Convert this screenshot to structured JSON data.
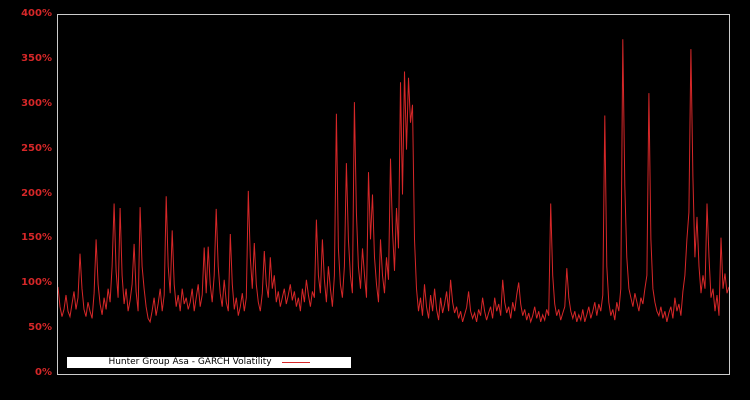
{
  "colors": {
    "background": "#000000",
    "accent_red": "#d62728",
    "plot_border": "#cccccc",
    "legend_bg": "#ffffff",
    "legend_border": "#000000",
    "legend_text": "#000000"
  },
  "chart_data": {
    "type": "line",
    "title": "",
    "legend_label": "Hunter Group Asa - GARCH Volatility",
    "legend_position": "lower left inside plot",
    "grid": false,
    "background": "black",
    "line_color": "#d62728",
    "y_unit": "%",
    "ylim": [
      0,
      400
    ],
    "y_ticks": [
      {
        "label": "400%",
        "value": 400
      },
      {
        "label": "350%",
        "value": 350
      },
      {
        "label": "300%",
        "value": 300
      },
      {
        "label": "250%",
        "value": 250
      },
      {
        "label": "200%",
        "value": 200
      },
      {
        "label": "150%",
        "value": 150
      },
      {
        "label": "100%",
        "value": 100
      },
      {
        "label": "50%",
        "value": 50
      },
      {
        "label": "0%",
        "value": 0
      }
    ],
    "x_tick_labels": [],
    "values": [
      97,
      75,
      64,
      72,
      88,
      70,
      64,
      78,
      92,
      72,
      85,
      134,
      95,
      72,
      64,
      80,
      70,
      62,
      90,
      150,
      100,
      78,
      66,
      85,
      72,
      95,
      80,
      120,
      190,
      115,
      85,
      185,
      110,
      78,
      95,
      70,
      82,
      100,
      145,
      92,
      70,
      186,
      120,
      95,
      75,
      62,
      58,
      70,
      85,
      65,
      78,
      95,
      70,
      88,
      198,
      120,
      90,
      160,
      100,
      75,
      88,
      70,
      95,
      78,
      85,
      72,
      80,
      95,
      70,
      85,
      100,
      75,
      88,
      141,
      90,
      142,
      100,
      80,
      110,
      184,
      120,
      90,
      75,
      105,
      80,
      70,
      156,
      100,
      72,
      85,
      65,
      75,
      90,
      70,
      85,
      204,
      130,
      95,
      146,
      100,
      80,
      70,
      90,
      137,
      100,
      85,
      130,
      95,
      110,
      80,
      92,
      75,
      85,
      95,
      78,
      88,
      100,
      82,
      92,
      75,
      85,
      70,
      95,
      80,
      105,
      88,
      75,
      92,
      85,
      172,
      110,
      90,
      150,
      105,
      80,
      120,
      95,
      75,
      110,
      290,
      140,
      100,
      85,
      120,
      235,
      150,
      110,
      90,
      303,
      180,
      120,
      95,
      140,
      110,
      85,
      225,
      150,
      200,
      130,
      100,
      80,
      150,
      110,
      90,
      130,
      105,
      240,
      160,
      115,
      185,
      140,
      325,
      200,
      337,
      250,
      330,
      280,
      300,
      150,
      95,
      70,
      85,
      65,
      100,
      75,
      62,
      88,
      70,
      95,
      72,
      60,
      85,
      68,
      78,
      92,
      70,
      105,
      80,
      68,
      75,
      62,
      70,
      58,
      66,
      74,
      92,
      70,
      62,
      68,
      58,
      72,
      65,
      85,
      70,
      60,
      68,
      75,
      62,
      85,
      70,
      78,
      65,
      105,
      80,
      68,
      75,
      62,
      80,
      70,
      88,
      102,
      78,
      65,
      72,
      60,
      68,
      58,
      65,
      75,
      62,
      70,
      58,
      66,
      60,
      72,
      65,
      190,
      110,
      78,
      65,
      72,
      60,
      68,
      75,
      118,
      85,
      70,
      62,
      70,
      58,
      66,
      60,
      72,
      58,
      66,
      75,
      62,
      70,
      80,
      65,
      78,
      70,
      88,
      288,
      120,
      80,
      65,
      72,
      60,
      80,
      70,
      95,
      373,
      210,
      130,
      95,
      85,
      75,
      90,
      80,
      70,
      85,
      78,
      95,
      110,
      313,
      150,
      95,
      80,
      70,
      65,
      75,
      62,
      70,
      58,
      68,
      75,
      62,
      85,
      70,
      78,
      65,
      92,
      110,
      150,
      180,
      362,
      220,
      130,
      175,
      120,
      90,
      110,
      95,
      190,
      130,
      85,
      95,
      70,
      88,
      65,
      152,
      95,
      112,
      90,
      97
    ]
  }
}
